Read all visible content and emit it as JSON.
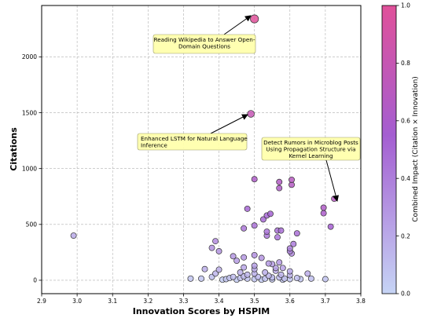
{
  "chart_data": {
    "type": "scatter",
    "title": "",
    "xlabel": "Innovation Scores by HSPIM",
    "ylabel": "Citations",
    "xlim": [
      2.9,
      3.8
    ],
    "ylim": [
      -120,
      2460
    ],
    "x_ticks": [
      2.9,
      3.0,
      3.1,
      3.2,
      3.3,
      3.4,
      3.5,
      3.6,
      3.7,
      3.8
    ],
    "y_ticks": [
      0,
      500,
      1000,
      1500,
      2000
    ],
    "grid": true,
    "colorbar": {
      "label": "Combined Impact (Citation × Innovation)",
      "range": [
        0.0,
        1.0
      ],
      "ticks": [
        0.0,
        0.2,
        0.4,
        0.6,
        0.8,
        1.0
      ],
      "color_low": "#c6d4f5",
      "color_mid": "#a45ed1",
      "color_high": "#e0519a"
    },
    "annotations": [
      {
        "text": "Reading Wikipedia to Answer Open-Domain Questions",
        "lines": [
          "Reading Wikipedia to Answer Open-",
          "Domain Questions"
        ],
        "x": 3.5,
        "y": 2340
      },
      {
        "text": "Enhanced LSTM for Natural Language Inference",
        "lines": [
          "Enhanced LSTM for Natural Language",
          "Inference"
        ],
        "x": 3.49,
        "y": 1490
      },
      {
        "text": "Detect Rumors in Microblog Posts Using Propagation Structure via Kernel Learning",
        "lines": [
          "Detect Rumors in Microblog Posts",
          "Using Propagation Structure via",
          "Kernel Learning"
        ],
        "x": 3.725,
        "y": 730
      }
    ],
    "points": [
      {
        "x": 3.5,
        "y": 2340,
        "size": "large"
      },
      {
        "x": 3.49,
        "y": 1490,
        "size": "medium"
      },
      {
        "x": 3.725,
        "y": 730
      },
      {
        "x": 2.99,
        "y": 400
      },
      {
        "x": 3.5,
        "y": 905
      },
      {
        "x": 3.57,
        "y": 880
      },
      {
        "x": 3.605,
        "y": 900
      },
      {
        "x": 3.57,
        "y": 825
      },
      {
        "x": 3.605,
        "y": 855
      },
      {
        "x": 3.48,
        "y": 640
      },
      {
        "x": 3.695,
        "y": 650
      },
      {
        "x": 3.695,
        "y": 600
      },
      {
        "x": 3.545,
        "y": 595
      },
      {
        "x": 3.535,
        "y": 580
      },
      {
        "x": 3.525,
        "y": 545
      },
      {
        "x": 3.5,
        "y": 490
      },
      {
        "x": 3.715,
        "y": 480
      },
      {
        "x": 3.47,
        "y": 465
      },
      {
        "x": 3.565,
        "y": 445
      },
      {
        "x": 3.575,
        "y": 445
      },
      {
        "x": 3.535,
        "y": 435
      },
      {
        "x": 3.62,
        "y": 420
      },
      {
        "x": 3.535,
        "y": 400
      },
      {
        "x": 3.565,
        "y": 385
      },
      {
        "x": 3.39,
        "y": 350
      },
      {
        "x": 3.61,
        "y": 325
      },
      {
        "x": 3.38,
        "y": 290
      },
      {
        "x": 3.6,
        "y": 285
      },
      {
        "x": 3.6,
        "y": 260
      },
      {
        "x": 3.4,
        "y": 260
      },
      {
        "x": 3.605,
        "y": 240
      },
      {
        "x": 3.5,
        "y": 225
      },
      {
        "x": 3.44,
        "y": 215
      },
      {
        "x": 3.47,
        "y": 205
      },
      {
        "x": 3.52,
        "y": 200
      },
      {
        "x": 3.45,
        "y": 175
      },
      {
        "x": 3.57,
        "y": 160
      },
      {
        "x": 3.54,
        "y": 150
      },
      {
        "x": 3.55,
        "y": 145
      },
      {
        "x": 3.5,
        "y": 130
      },
      {
        "x": 3.47,
        "y": 115
      },
      {
        "x": 3.56,
        "y": 110
      },
      {
        "x": 3.58,
        "y": 110
      },
      {
        "x": 3.5,
        "y": 100
      },
      {
        "x": 3.36,
        "y": 100
      },
      {
        "x": 3.4,
        "y": 95
      },
      {
        "x": 3.56,
        "y": 85
      },
      {
        "x": 3.6,
        "y": 80
      },
      {
        "x": 3.46,
        "y": 70
      },
      {
        "x": 3.53,
        "y": 70
      },
      {
        "x": 3.5,
        "y": 60
      },
      {
        "x": 3.65,
        "y": 60
      },
      {
        "x": 3.39,
        "y": 60
      },
      {
        "x": 3.48,
        "y": 50
      },
      {
        "x": 3.575,
        "y": 50
      },
      {
        "x": 3.6,
        "y": 45
      },
      {
        "x": 3.54,
        "y": 40
      },
      {
        "x": 3.47,
        "y": 35
      },
      {
        "x": 3.38,
        "y": 30
      },
      {
        "x": 3.44,
        "y": 30
      },
      {
        "x": 3.51,
        "y": 30
      },
      {
        "x": 3.55,
        "y": 25
      },
      {
        "x": 3.57,
        "y": 25
      },
      {
        "x": 3.43,
        "y": 20
      },
      {
        "x": 3.46,
        "y": 20
      },
      {
        "x": 3.62,
        "y": 20
      },
      {
        "x": 3.32,
        "y": 15
      },
      {
        "x": 3.35,
        "y": 15
      },
      {
        "x": 3.48,
        "y": 15
      },
      {
        "x": 3.53,
        "y": 15
      },
      {
        "x": 3.585,
        "y": 15
      },
      {
        "x": 3.6,
        "y": 10
      },
      {
        "x": 3.66,
        "y": 15
      },
      {
        "x": 3.7,
        "y": 10
      },
      {
        "x": 3.42,
        "y": 10
      },
      {
        "x": 3.5,
        "y": 10
      },
      {
        "x": 3.55,
        "y": 8
      },
      {
        "x": 3.58,
        "y": 5
      },
      {
        "x": 3.45,
        "y": 5
      },
      {
        "x": 3.41,
        "y": 5
      },
      {
        "x": 3.63,
        "y": 10
      },
      {
        "x": 3.52,
        "y": 5
      }
    ]
  }
}
